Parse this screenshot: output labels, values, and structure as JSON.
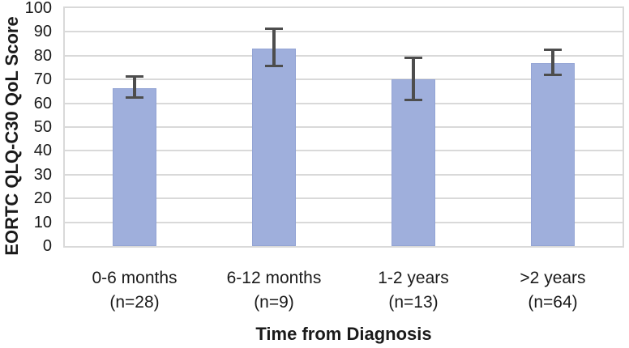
{
  "chart_data": {
    "type": "bar",
    "title": "",
    "xlabel": "Time from Diagnosis",
    "ylabel": "EORTC QLQ-C30 QoL Score",
    "categories": [
      "0-6 months",
      "6-12 months",
      "1-2 years",
      ">2 years"
    ],
    "category_sublabels": [
      "(n=28)",
      "(n=9)",
      "(n=13)",
      "(n=64)"
    ],
    "values": [
      66.5,
      83,
      70,
      77
    ],
    "error_upper": [
      71,
      91,
      79,
      82.3
    ],
    "error_lower": [
      62.5,
      76,
      61.5,
      72
    ],
    "ylim": [
      0,
      100
    ],
    "ytick_step": 10,
    "grid": "horizontal",
    "legend": "none",
    "bar_color": "#9fafdc",
    "bar_border_color": "#93a4d4",
    "error_bar_color": "#4d4d4d",
    "gridline_color": "#d9d9d9",
    "axis_text_color": "#1a1a1a"
  }
}
